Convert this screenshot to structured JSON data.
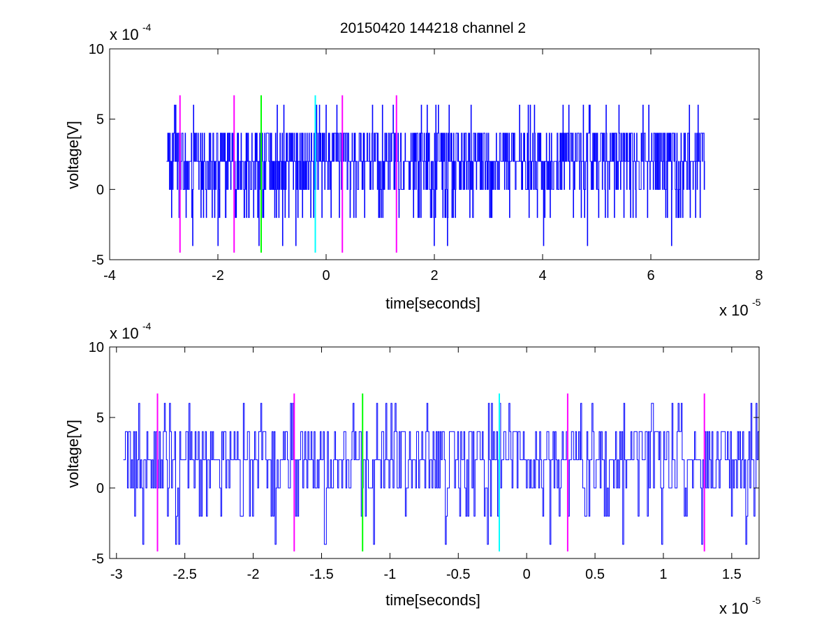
{
  "chart_data": [
    {
      "type": "line",
      "title": "20150420 144218 channel 2",
      "xlabel": "time[seconds]",
      "ylabel": "voltage[V]",
      "x_multiplier": "x 10",
      "x_exponent": "-5",
      "y_multiplier": "x 10",
      "y_exponent": "-4",
      "xlim": [
        -4,
        8
      ],
      "ylim": [
        -5,
        10
      ],
      "xticks": [
        -4,
        -2,
        0,
        2,
        4,
        6,
        8
      ],
      "xtick_labels": [
        "-4",
        "-2",
        "0",
        "2",
        "4",
        "6",
        "8"
      ],
      "yticks": [
        -5,
        0,
        5,
        10
      ],
      "ytick_labels": [
        "-5",
        "0",
        "5",
        "10"
      ],
      "grid": false,
      "series": [
        {
          "color": "#0000ff",
          "x_range": [
            -2.95,
            7.0
          ],
          "levels": [
            -2,
            0,
            2,
            4,
            6
          ],
          "baseline": 2
        }
      ],
      "markers": [
        {
          "x": -2.7,
          "color": "#ff00ff",
          "y_range": [
            -4.5,
            6.7
          ]
        },
        {
          "x": -1.7,
          "color": "#ff00ff",
          "y_range": [
            -4.5,
            6.7
          ]
        },
        {
          "x": -1.2,
          "color": "#00ff00",
          "y_range": [
            -4.5,
            6.7
          ]
        },
        {
          "x": -0.2,
          "color": "#00ffff",
          "y_range": [
            -4.5,
            6.7
          ]
        },
        {
          "x": 0.3,
          "color": "#ff00ff",
          "y_range": [
            -4.5,
            6.7
          ]
        },
        {
          "x": 1.3,
          "color": "#ff00ff",
          "y_range": [
            -4.5,
            6.7
          ]
        }
      ]
    },
    {
      "type": "line",
      "xlabel": "time[seconds]",
      "ylabel": "voltage[V]",
      "x_multiplier": "x 10",
      "x_exponent": "-5",
      "y_multiplier": "x 10",
      "y_exponent": "-4",
      "xlim": [
        -3.05,
        1.7
      ],
      "ylim": [
        -5,
        10
      ],
      "xticks": [
        -3,
        -2.5,
        -2,
        -1.5,
        -1,
        -0.5,
        0,
        0.5,
        1,
        1.5
      ],
      "xtick_labels": [
        "-3",
        "-2.5",
        "-2",
        "-1.5",
        "-1",
        "-0.5",
        "0",
        "0.5",
        "1",
        "1.5"
      ],
      "yticks": [
        -5,
        0,
        5,
        10
      ],
      "ytick_labels": [
        "-5",
        "0",
        "5",
        "10"
      ],
      "grid": false,
      "series": [
        {
          "color": "#0000ff",
          "x_range": [
            -2.95,
            1.7
          ],
          "levels": [
            -4,
            -2,
            0,
            2,
            4,
            6
          ],
          "baseline": 2
        }
      ],
      "markers": [
        {
          "x": -2.7,
          "color": "#ff00ff",
          "y_range": [
            -4.5,
            6.7
          ]
        },
        {
          "x": -1.7,
          "color": "#ff00ff",
          "y_range": [
            -4.5,
            6.7
          ]
        },
        {
          "x": -1.2,
          "color": "#00ff00",
          "y_range": [
            -4.5,
            6.7
          ]
        },
        {
          "x": -0.2,
          "color": "#00ffff",
          "y_range": [
            -4.5,
            6.7
          ]
        },
        {
          "x": 0.3,
          "color": "#ff00ff",
          "y_range": [
            -4.5,
            6.7
          ]
        },
        {
          "x": 1.3,
          "color": "#ff00ff",
          "y_range": [
            -4.5,
            6.7
          ]
        }
      ]
    }
  ]
}
